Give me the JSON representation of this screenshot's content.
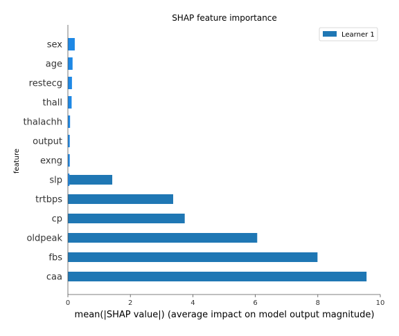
{
  "chart_data": {
    "type": "bar",
    "orientation": "horizontal",
    "title": "SHAP feature importance",
    "xlabel": "mean(|SHAP value|) (average impact on model output magnitude)",
    "ylabel": "feature",
    "xlim": [
      0,
      10
    ],
    "xticks": [
      "0",
      "2",
      "4",
      "6",
      "8",
      "10"
    ],
    "grid": false,
    "legend_position": "top-right",
    "categories": [
      "sex",
      "age",
      "restecg",
      "thall",
      "thalachh",
      "output",
      "exng",
      "slp",
      "trtbps",
      "cp",
      "oldpeak",
      "fbs",
      "caa"
    ],
    "series": [
      {
        "name": "Learner 1",
        "color": "#1f77b4",
        "values": [
          0.0,
          0.0,
          0.0,
          0.0,
          0.0,
          0.0,
          0.0,
          1.42,
          3.37,
          3.74,
          6.06,
          7.99,
          9.56
        ]
      }
    ],
    "overlay_series": {
      "color": "#1e88e5",
      "values": [
        0.22,
        0.15,
        0.13,
        0.12,
        0.07,
        0.06,
        0.06,
        0.05,
        0.0,
        0.0,
        0.0,
        0.0,
        0.0
      ]
    }
  }
}
